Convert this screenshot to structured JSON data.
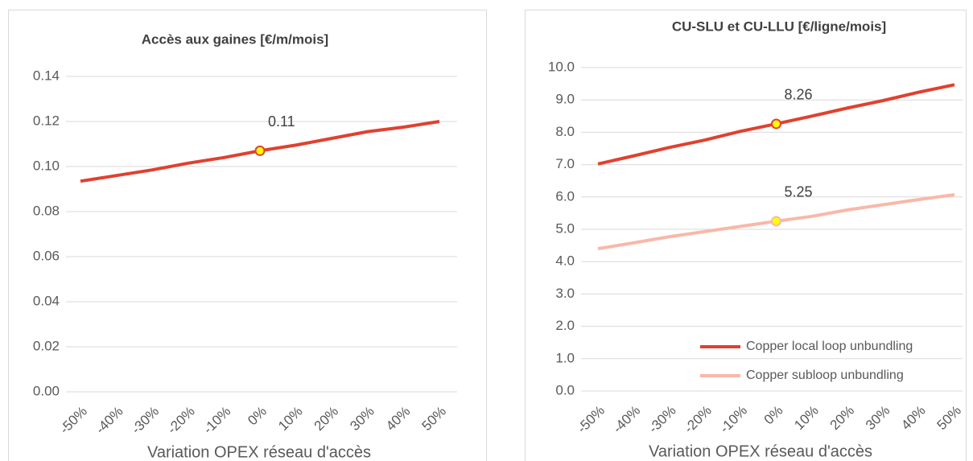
{
  "chart_data": [
    {
      "type": "line",
      "title": "Accès aux gaines [€/m/mois]",
      "x_label": "Variation OPEX réseau d'accès",
      "categories": [
        "-50%",
        "-40%",
        "-30%",
        "-20%",
        "-10%",
        "0%",
        "10%",
        "20%",
        "30%",
        "40%",
        "50%"
      ],
      "series": [
        {
          "name": "Accès aux gaines",
          "color": "#e0412f",
          "marker_color": "#ffff00",
          "values": [
            0.0935,
            0.096,
            0.0985,
            0.1015,
            0.104,
            0.107,
            0.1095,
            0.1125,
            0.1155,
            0.1175,
            0.12
          ],
          "value_labels": [
            null,
            null,
            null,
            null,
            null,
            "0.11",
            null,
            null,
            null,
            null,
            null
          ]
        }
      ],
      "highlight": "0%",
      "legend": false,
      "grid": true,
      "ylim": [
        0,
        0.14
      ],
      "yticks": [
        {
          "value": 0,
          "label": "0.00"
        },
        0.02,
        0.04,
        0.06,
        0.08,
        {
          "value": 0.1,
          "label": "0.10"
        },
        0.12,
        0.14
      ]
    },
    {
      "type": "line",
      "title": "CU-SLU et CU-LLU [€/ligne/mois]",
      "x_label": "Variation OPEX réseau d'accès",
      "categories": [
        "-50%",
        "-40%",
        "-30%",
        "-20%",
        "-10%",
        "0%",
        "10%",
        "20%",
        "30%",
        "40%",
        "50%"
      ],
      "series": [
        {
          "name": "Copper local loop unbundling",
          "color": "#e0412f",
          "marker_color": "#ffff00",
          "values": [
            7.02,
            7.27,
            7.53,
            7.76,
            8.03,
            8.26,
            8.5,
            8.75,
            8.98,
            9.24,
            9.47
          ]
        },
        {
          "name": "Copper subloop unbundling",
          "color": "#f8b8a8",
          "marker_color": "#ffff00",
          "values": [
            4.4,
            4.58,
            4.77,
            4.93,
            5.09,
            5.25,
            5.4,
            5.6,
            5.76,
            5.92,
            6.07
          ]
        }
      ],
      "highlight": "0%",
      "legend": "lower right",
      "grid": true,
      "ylim": [
        0,
        10
      ],
      "yticks": [
        {
          "value": 0,
          "label": "0.0"
        },
        {
          "value": 1,
          "label": "1.0"
        },
        {
          "value": 2,
          "label": "2.0"
        },
        {
          "value": 3,
          "label": "3.0"
        },
        {
          "value": 4,
          "label": "4.0"
        },
        {
          "value": 5,
          "label": "5.0"
        },
        {
          "value": 6,
          "label": "6.0"
        },
        {
          "value": 7,
          "label": "7.0"
        },
        {
          "value": 8,
          "label": "8.0"
        },
        {
          "value": 9,
          "label": "9.0"
        },
        {
          "value": 10,
          "label": "10.0"
        }
      ]
    }
  ]
}
